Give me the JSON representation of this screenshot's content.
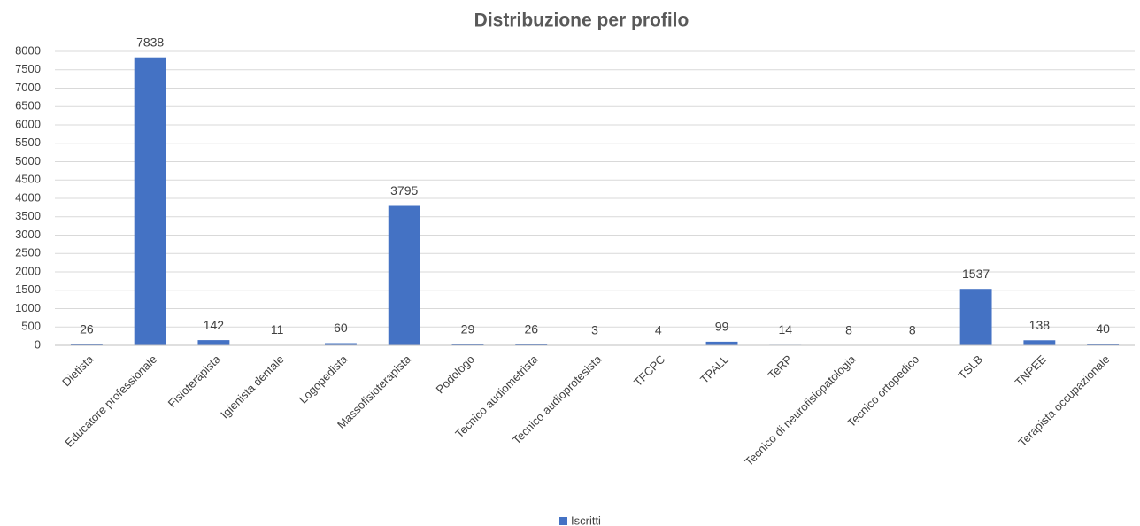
{
  "chart_data": {
    "type": "bar",
    "title": "Distribuzione per profilo",
    "categories": [
      "Dietista",
      "Educatore professionale",
      "Fisioterapista",
      "Igienista dentale",
      "Logopedista",
      "Massofisioterapista",
      "Podologo",
      "Tecnico audiometrista",
      "Tecnico audioprotesista",
      "TFCPC",
      "TPALL",
      "TeRP",
      "Tecnico di neurofisiopatologia",
      "Tecnico ortopedico",
      "TSLB",
      "TNPEE",
      "Terapista occupazionale"
    ],
    "series": [
      {
        "name": "Iscritti",
        "color": "#4472c4",
        "values": [
          26,
          7838,
          142,
          11,
          60,
          3795,
          29,
          26,
          3,
          4,
          99,
          14,
          8,
          8,
          1537,
          138,
          40
        ]
      }
    ],
    "ylim": [
      0,
      8000
    ],
    "yticks": [
      0,
      500,
      1000,
      1500,
      2000,
      2500,
      3000,
      3500,
      4000,
      4500,
      5000,
      5500,
      6000,
      6500,
      7000,
      7500,
      8000
    ],
    "grid": true,
    "legend": "bottom"
  }
}
